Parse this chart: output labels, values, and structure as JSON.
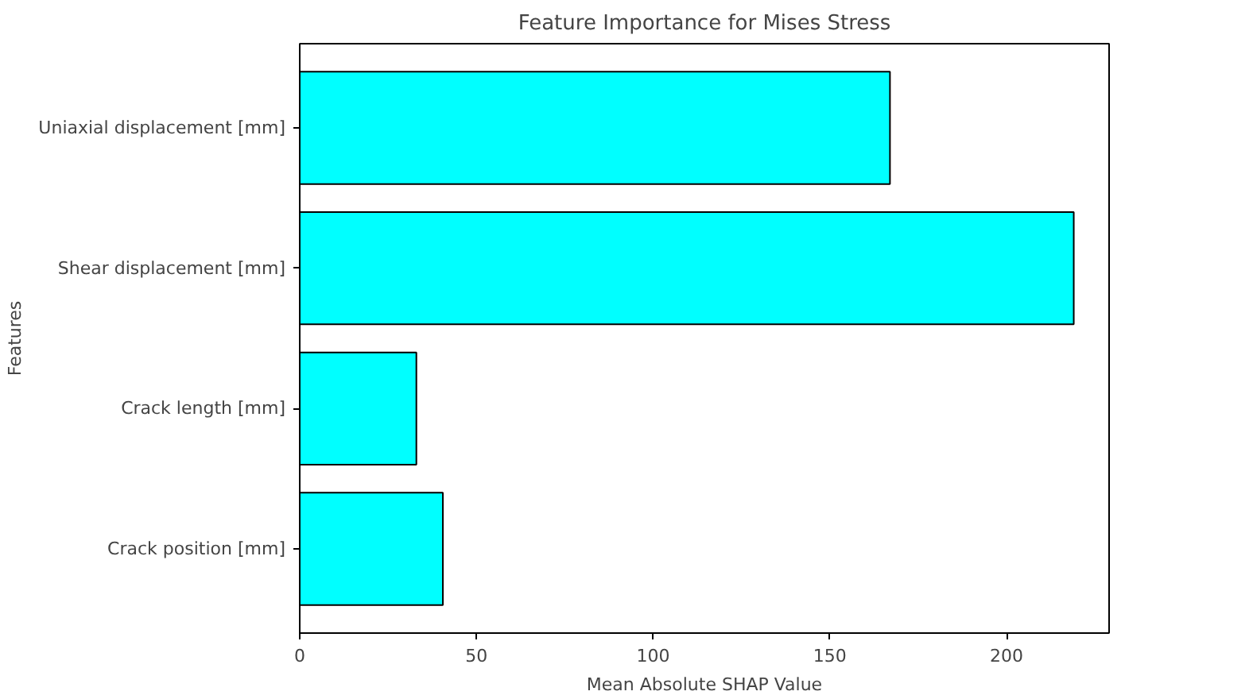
{
  "chart_data": {
    "type": "bar",
    "orientation": "horizontal",
    "title": "Feature Importance for Mises Stress",
    "xlabel": "Mean Absolute SHAP Value",
    "ylabel": "Features",
    "categories": [
      "Uniaxial displacement [mm]",
      "Shear displacement [mm]",
      "Crack length [mm]",
      "Crack position [mm]"
    ],
    "values": [
      167,
      219,
      33,
      40.5
    ],
    "color": "#00ffff",
    "xlim": [
      0,
      229
    ],
    "xticks": [
      0,
      50,
      100,
      150,
      200
    ],
    "grid": false
  }
}
